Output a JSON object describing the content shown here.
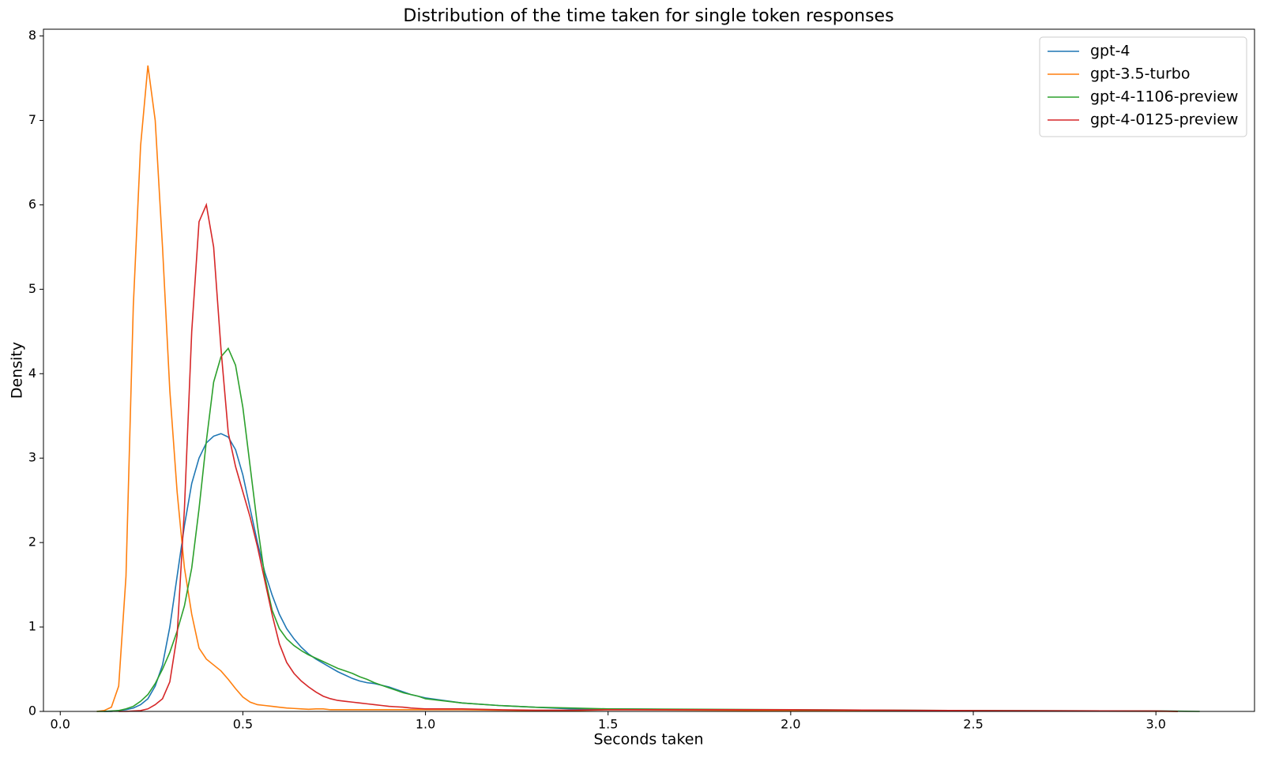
{
  "chart_data": {
    "type": "line",
    "title": "Distribution of the time taken for single token responses",
    "x_label": "Seconds taken",
    "y_label": "Density",
    "x": [
      0.1,
      0.12,
      0.14,
      0.16,
      0.18,
      0.2,
      0.22,
      0.24,
      0.26,
      0.28,
      0.3,
      0.32,
      0.34,
      0.36,
      0.38,
      0.4,
      0.42,
      0.44,
      0.46,
      0.48,
      0.5,
      0.52,
      0.54,
      0.56,
      0.58,
      0.6,
      0.62,
      0.64,
      0.66,
      0.68,
      0.7,
      0.72,
      0.74,
      0.76,
      0.78,
      0.8,
      0.82,
      0.84,
      0.86,
      0.88,
      0.9,
      0.92,
      0.94,
      0.96,
      0.98,
      1.0,
      1.1,
      1.2,
      1.3,
      1.4,
      1.5,
      2.0,
      2.5,
      3.0,
      3.06,
      3.12
    ],
    "series": [
      {
        "name": "gpt-4",
        "color": "#1f77b4",
        "values": [
          null,
          0,
          0,
          0.01,
          0.02,
          0.04,
          0.08,
          0.15,
          0.3,
          0.55,
          1.0,
          1.6,
          2.2,
          2.7,
          3.0,
          3.18,
          3.26,
          3.29,
          3.25,
          3.1,
          2.8,
          2.4,
          2.0,
          1.65,
          1.38,
          1.15,
          0.98,
          0.86,
          0.76,
          0.68,
          0.62,
          0.57,
          0.52,
          0.47,
          0.43,
          0.39,
          0.36,
          0.34,
          0.33,
          0.31,
          0.29,
          0.26,
          0.23,
          0.2,
          0.18,
          0.16,
          0.1,
          0.07,
          0.05,
          0.03,
          0.03,
          0.015,
          0.01,
          0.005,
          0.002,
          null
        ]
      },
      {
        "name": "gpt-3.5-turbo",
        "color": "#ff7f0e",
        "values": [
          0,
          0.01,
          0.05,
          0.3,
          1.6,
          4.8,
          6.7,
          7.65,
          7.0,
          5.5,
          3.8,
          2.6,
          1.7,
          1.15,
          0.75,
          0.62,
          0.55,
          0.48,
          0.38,
          0.27,
          0.17,
          0.11,
          0.08,
          0.07,
          0.06,
          0.05,
          0.04,
          0.035,
          0.03,
          0.025,
          0.03,
          0.03,
          0.02,
          0.02,
          0.02,
          0.02,
          0.02,
          0.02,
          0.02,
          0.02,
          0.02,
          0.02,
          0.02,
          0.02,
          0.02,
          0.02,
          0.02,
          0.015,
          0.01,
          0.01,
          0.02,
          0.01,
          0.005,
          0.002,
          0,
          null
        ]
      },
      {
        "name": "gpt-4-1106-preview",
        "color": "#2ca02c",
        "values": [
          0,
          0,
          0.005,
          0.01,
          0.03,
          0.06,
          0.12,
          0.2,
          0.33,
          0.5,
          0.7,
          0.95,
          1.25,
          1.7,
          2.4,
          3.2,
          3.9,
          4.2,
          4.3,
          4.1,
          3.6,
          2.9,
          2.2,
          1.6,
          1.2,
          0.98,
          0.86,
          0.78,
          0.72,
          0.67,
          0.63,
          0.59,
          0.55,
          0.51,
          0.48,
          0.45,
          0.41,
          0.38,
          0.34,
          0.31,
          0.28,
          0.25,
          0.22,
          0.2,
          0.18,
          0.15,
          0.1,
          0.07,
          0.05,
          0.04,
          0.03,
          0.02,
          0.01,
          0.005,
          0.003,
          0
        ]
      },
      {
        "name": "gpt-4-0125-preview",
        "color": "#d62728",
        "values": [
          null,
          null,
          null,
          0,
          0,
          0.005,
          0.01,
          0.03,
          0.08,
          0.15,
          0.35,
          0.9,
          2.4,
          4.5,
          5.8,
          6.0,
          5.5,
          4.3,
          3.3,
          2.9,
          2.6,
          2.3,
          1.95,
          1.55,
          1.15,
          0.8,
          0.58,
          0.45,
          0.36,
          0.29,
          0.23,
          0.18,
          0.15,
          0.13,
          0.12,
          0.11,
          0.1,
          0.09,
          0.08,
          0.07,
          0.06,
          0.055,
          0.05,
          0.04,
          0.035,
          0.03,
          0.03,
          0.02,
          0.015,
          0.015,
          0.02,
          0.02,
          0.01,
          0.005,
          0,
          null
        ]
      }
    ],
    "xlim": [
      -0.046,
      3.27
    ],
    "ylim": [
      0,
      8.08
    ],
    "xticks": [
      {
        "value": 0,
        "label": "0.0"
      },
      0.5,
      {
        "value": 1,
        "label": "1.0"
      },
      1.5,
      {
        "value": 2,
        "label": "2.0"
      },
      2.5,
      {
        "value": 3,
        "label": "3.0"
      }
    ],
    "yticks": [
      0,
      1,
      2,
      3,
      4,
      5,
      6,
      7,
      8
    ],
    "legend": "upper right",
    "grid": false
  }
}
